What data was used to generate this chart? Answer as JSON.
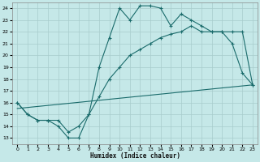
{
  "xlabel": "Humidex (Indice chaleur)",
  "bg_color": "#c5e8e8",
  "grid_color": "#a8cccc",
  "line_color": "#1a6b6b",
  "xlim": [
    -0.5,
    23.5
  ],
  "ylim": [
    12.5,
    24.5
  ],
  "xticks": [
    0,
    1,
    2,
    3,
    4,
    5,
    6,
    7,
    8,
    9,
    10,
    11,
    12,
    13,
    14,
    15,
    16,
    17,
    18,
    19,
    20,
    21,
    22,
    23
  ],
  "yticks": [
    13,
    14,
    15,
    16,
    17,
    18,
    19,
    20,
    21,
    22,
    23,
    24
  ],
  "curve1_x": [
    0,
    1,
    2,
    3,
    4,
    5,
    6,
    7,
    8,
    9,
    10,
    11,
    12,
    13,
    14,
    15,
    16,
    17,
    18,
    19,
    20,
    21,
    22,
    23
  ],
  "curve1_y": [
    16,
    15,
    14.5,
    14.5,
    14,
    13,
    13,
    15,
    19,
    21.5,
    24,
    23,
    24.2,
    24.2,
    24.0,
    22.5,
    23.5,
    23,
    22.5,
    22,
    22,
    21,
    18.5,
    17.5
  ],
  "curve2_x": [
    0,
    1,
    2,
    3,
    4,
    5,
    6,
    7,
    8,
    9,
    10,
    11,
    12,
    13,
    14,
    15,
    16,
    17,
    18,
    19,
    20,
    21,
    22,
    23
  ],
  "curve2_y": [
    16,
    15,
    14.5,
    14.5,
    14.5,
    13.5,
    14,
    15,
    16.5,
    18,
    19,
    20,
    20.5,
    21,
    21.5,
    21.8,
    22,
    22.5,
    22,
    22,
    22,
    22,
    22,
    17.5
  ],
  "regline_x": [
    0,
    23
  ],
  "regline_y": [
    15.5,
    17.5
  ]
}
